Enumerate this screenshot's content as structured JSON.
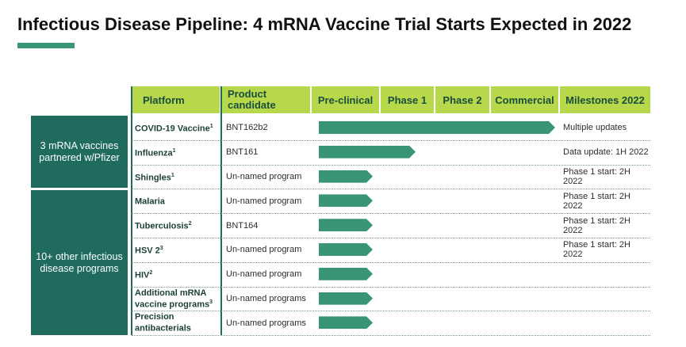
{
  "title": "Infectious Disease Pipeline: 4 mRNA Vaccine Trial Starts Expected in 2022",
  "groups": [
    {
      "label": "3 mRNA vaccines partnered w/Pfizer"
    },
    {
      "label": "10+ other infectious disease programs"
    }
  ],
  "headers": {
    "platform": "Platform",
    "product": "Product candidate",
    "preclinical": "Pre-clinical",
    "phase1": "Phase 1",
    "phase2": "Phase 2",
    "commercial": "Commercial",
    "milestones": "Milestones 2022"
  },
  "colors": {
    "header_bg": "#b7d84a",
    "group_bg": "#1f6b5e",
    "bar": "#3a9477"
  },
  "rows": [
    {
      "platform": "COVID-19 Vaccine",
      "sup": "1",
      "candidate": "BNT162b2",
      "milestone": "Multiple updates",
      "stage": "Commercial"
    },
    {
      "platform": "Influenza",
      "sup": "1",
      "candidate": "BNT161",
      "milestone": "Data update: 1H 2022",
      "stage": "Phase 1"
    },
    {
      "platform": "Shingles",
      "sup": "1",
      "candidate": "Un-named program",
      "milestone": "Phase 1 start: 2H 2022",
      "stage": "Pre-clinical"
    },
    {
      "platform": "Malaria",
      "sup": "",
      "candidate": "Un-named program",
      "milestone": "Phase 1 start: 2H 2022",
      "stage": "Pre-clinical"
    },
    {
      "platform": "Tuberculosis",
      "sup": "2",
      "candidate": "BNT164",
      "milestone": "Phase 1 start: 2H 2022",
      "stage": "Pre-clinical"
    },
    {
      "platform": "HSV 2",
      "sup": "3",
      "candidate": "Un-named program",
      "milestone": "Phase 1 start: 2H 2022",
      "stage": "Pre-clinical"
    },
    {
      "platform": "HIV",
      "sup": "2",
      "candidate": "Un-named program",
      "milestone": "",
      "stage": "Pre-clinical"
    },
    {
      "platform": "Additional mRNA vaccine programs",
      "sup": "3",
      "candidate": "Un-named programs",
      "milestone": "",
      "stage": "Pre-clinical"
    },
    {
      "platform": "Precision antibacterials",
      "sup": "",
      "candidate": "Un-named programs",
      "milestone": "",
      "stage": "Pre-clinical"
    }
  ]
}
